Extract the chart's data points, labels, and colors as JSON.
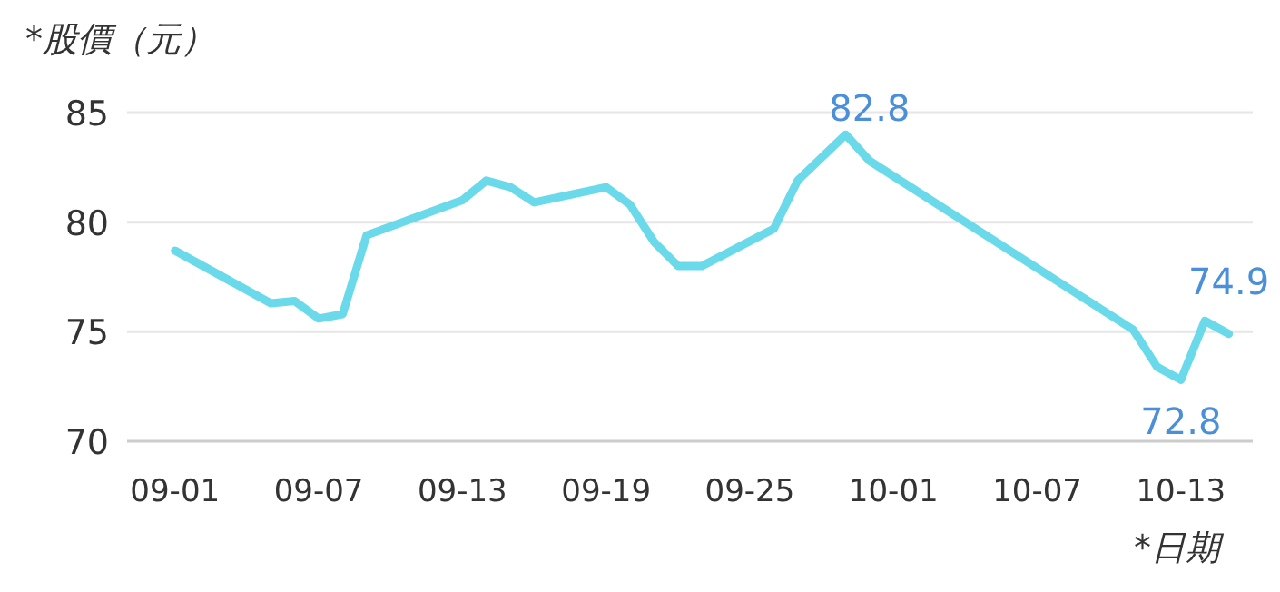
{
  "chart_data": {
    "type": "line",
    "ylabel": "*股價（元）",
    "xlabel": "*日期",
    "x": [
      "--09-01",
      "--09-05",
      "--09-06",
      "--09-07",
      "--09-08",
      "--09-09",
      "--09-13",
      "--09-14",
      "--09-15",
      "--09-16",
      "--09-19",
      "--09-20",
      "--09-21",
      "--09-22",
      "--09-23",
      "--09-26",
      "--09-27",
      "--09-29",
      "--09-30",
      "--10-11",
      "--10-12",
      "--10-13",
      "--10-14",
      "--10-15"
    ],
    "series": [
      {
        "color": "#6ad9ea",
        "values": [
          78.7,
          76.3,
          76.4,
          75.6,
          75.8,
          79.4,
          81.0,
          81.9,
          81.6,
          80.9,
          81.6,
          80.8,
          79.1,
          78.0,
          78.0,
          79.7,
          81.9,
          84.0,
          82.8,
          75.1,
          73.4,
          72.8,
          75.5,
          74.9
        ],
        "value_labels": [
          null,
          null,
          null,
          null,
          null,
          null,
          null,
          null,
          null,
          null,
          null,
          null,
          null,
          null,
          null,
          null,
          null,
          null,
          "82.8",
          null,
          null,
          "72.8",
          null,
          "74.9"
        ]
      }
    ],
    "xlim": [
      "--08-30",
      "--10-16"
    ],
    "xticks": [
      {
        "value": "--09-01",
        "label": "09-01"
      },
      {
        "value": "--09-07",
        "label": "09-07"
      },
      {
        "value": "--09-13",
        "label": "09-13"
      },
      {
        "value": "--09-19",
        "label": "09-19"
      },
      {
        "value": "--09-25",
        "label": "09-25"
      },
      {
        "value": "--10-01",
        "label": "10-01"
      },
      {
        "value": "--10-07",
        "label": "10-07"
      },
      {
        "value": "--10-13",
        "label": "10-13"
      }
    ],
    "ylim": [
      70,
      85
    ],
    "yticks": [
      70,
      75,
      80,
      85
    ],
    "grid": "y"
  }
}
